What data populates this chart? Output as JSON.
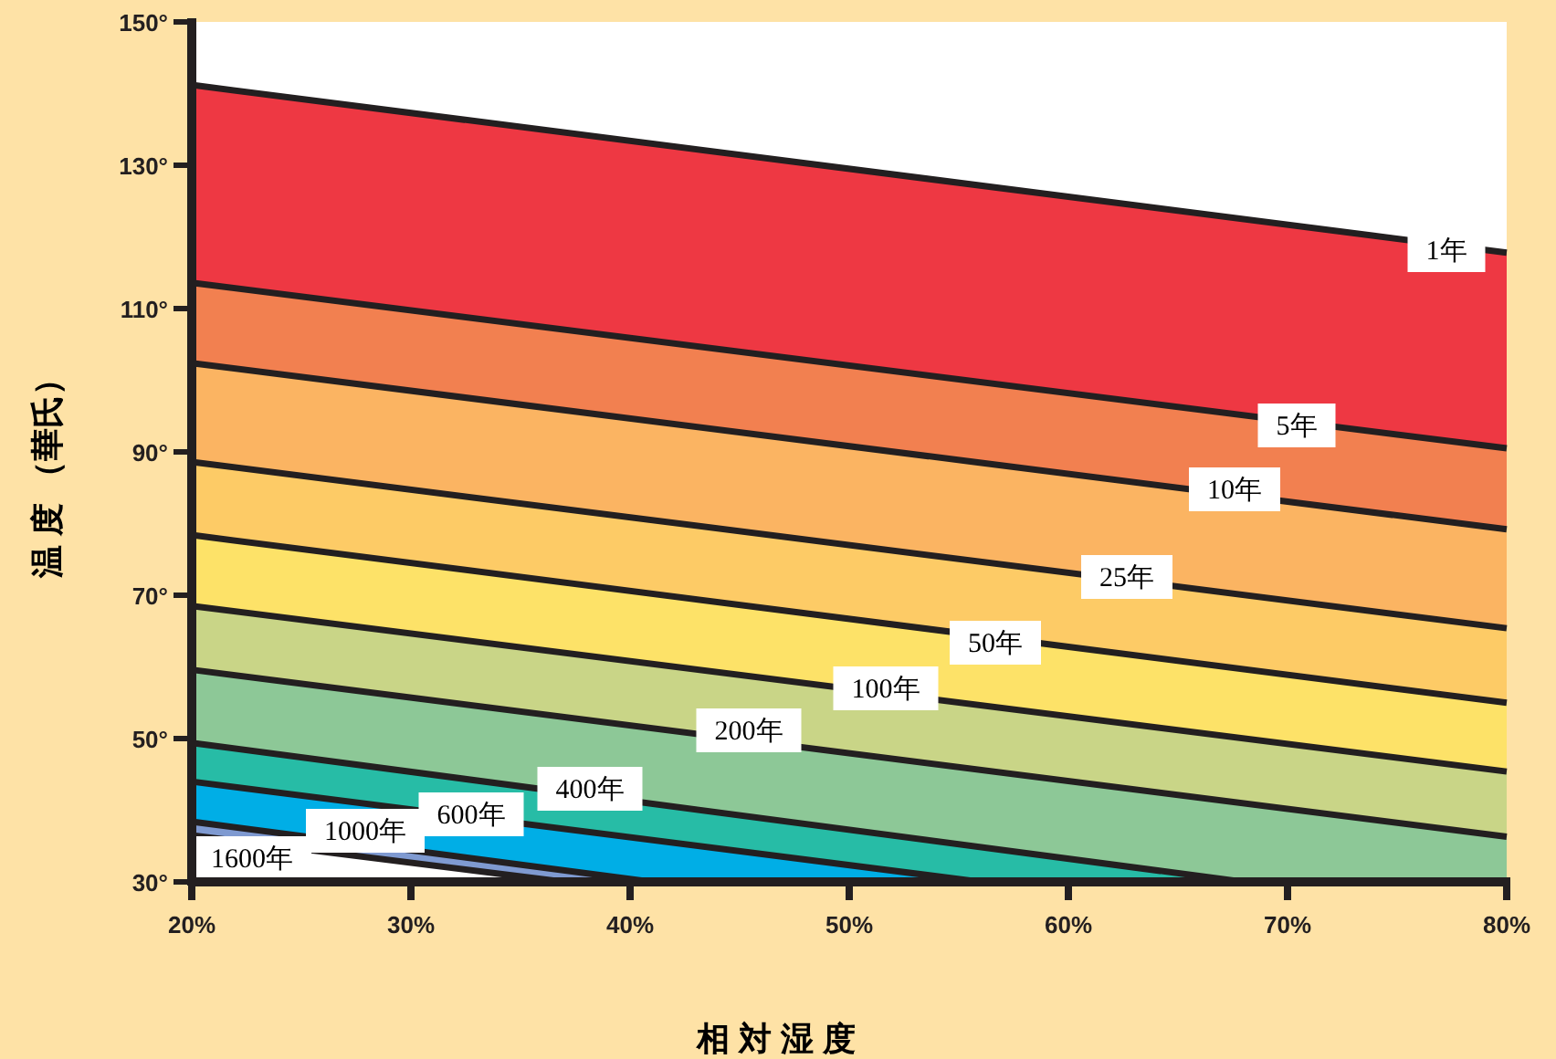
{
  "chart_data": {
    "type": "area",
    "xlabel": "相 対 湿 度",
    "ylabel": "温 度 （華氏）",
    "xlim": [
      20,
      80
    ],
    "ylim": [
      30,
      150
    ],
    "xticks": [
      {
        "value": 20,
        "label": "20%"
      },
      {
        "value": 30,
        "label": "30%"
      },
      {
        "value": 40,
        "label": "40%"
      },
      {
        "value": 50,
        "label": "50%"
      },
      {
        "value": 60,
        "label": "60%"
      },
      {
        "value": 70,
        "label": "70%"
      },
      {
        "value": 80,
        "label": "80%"
      }
    ],
    "yticks": [
      {
        "value": 30,
        "label": "30°"
      },
      {
        "value": 50,
        "label": "50°"
      },
      {
        "value": 70,
        "label": "70°"
      },
      {
        "value": 90,
        "label": "90°"
      },
      {
        "value": 110,
        "label": "110°"
      },
      {
        "value": 130,
        "label": "130°"
      },
      {
        "value": 150,
        "label": "150°"
      }
    ],
    "legend": false,
    "grid": false,
    "series": [
      {
        "name": "1年",
        "color": "#ee3843",
        "x": [
          20,
          80
        ],
        "values": [
          141.2,
          117.8
        ]
      },
      {
        "name": "5年",
        "color": "#f28050",
        "x": [
          20,
          80
        ],
        "values": [
          113.6,
          90.5
        ]
      },
      {
        "name": "10年",
        "color": "#fbb462",
        "x": [
          20,
          80
        ],
        "values": [
          102.4,
          79.2
        ]
      },
      {
        "name": "25年",
        "color": "#fdcb66",
        "x": [
          20,
          80
        ],
        "values": [
          88.6,
          65.4
        ]
      },
      {
        "name": "50年",
        "color": "#fde268",
        "x": [
          20,
          80
        ],
        "values": [
          78.4,
          55
        ]
      },
      {
        "name": "100年",
        "color": "#c9d587",
        "x": [
          20,
          80
        ],
        "values": [
          68.5,
          45.4
        ]
      },
      {
        "name": "200年",
        "color": "#8dc897",
        "x": [
          20,
          80
        ],
        "values": [
          59.6,
          36.3
        ]
      },
      {
        "name": "400年",
        "color": "#27bca6",
        "x": [
          20,
          68
        ],
        "values": [
          49.4,
          30
        ]
      },
      {
        "name": "600年",
        "color": "#00aee6",
        "x": [
          20,
          56
        ],
        "values": [
          44,
          30
        ]
      },
      {
        "name": "1000年",
        "color": "#7f9ad1",
        "x": [
          20,
          41
        ],
        "values": [
          38.4,
          30
        ]
      },
      {
        "name": "1600年",
        "type": "line",
        "color": "#231f20",
        "x": [
          20,
          37
        ],
        "values": [
          36.5,
          30
        ]
      }
    ]
  }
}
